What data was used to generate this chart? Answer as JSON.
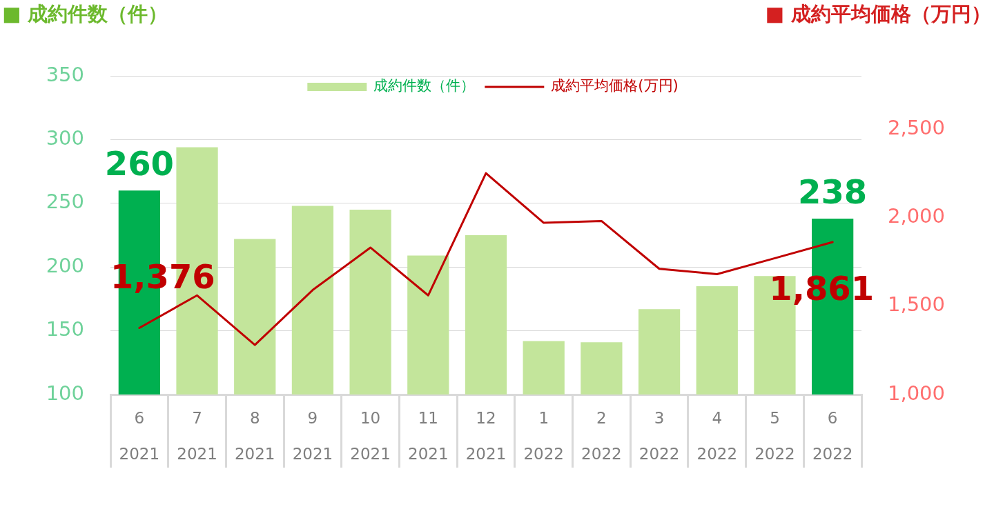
{
  "chart_data": {
    "type": "bar",
    "ylabel": "■ 成約件数（件）",
    "y2label": "■ 成約平均価格（万円）",
    "categories": [
      "6\n2021",
      "7\n2021",
      "8\n2021",
      "9\n2021",
      "10\n2021",
      "11\n2021",
      "12\n2021",
      "1\n2022",
      "2\n2022",
      "3\n2022",
      "4\n2022",
      "5\n2022",
      "6\n2022"
    ],
    "series": [
      {
        "name": "成約件数（件）",
        "color": "#c3e59b",
        "colors": [
          "#00b050",
          "#c3e59b",
          "#c3e59b",
          "#c3e59b",
          "#c3e59b",
          "#c3e59b",
          "#c3e59b",
          "#c3e59b",
          "#c3e59b",
          "#c3e59b",
          "#c3e59b",
          "#c3e59b",
          "#00b050"
        ],
        "values": [
          260,
          294,
          222,
          248,
          245,
          209,
          225,
          142,
          141,
          167,
          185,
          193,
          238
        ],
        "value_labels": [
          "260",
          null,
          null,
          null,
          null,
          null,
          null,
          null,
          null,
          null,
          null,
          null,
          "238"
        ]
      },
      {
        "name": "成約平均価格(万円)",
        "type": "line",
        "axis": "y2",
        "color": "#c00000",
        "values": [
          1376,
          1560,
          1280,
          1590,
          1830,
          1560,
          2250,
          1970,
          1980,
          1710,
          1680,
          1770,
          1861
        ],
        "value_labels": [
          "1,376",
          null,
          null,
          null,
          null,
          null,
          null,
          null,
          null,
          null,
          null,
          null,
          "1,861"
        ]
      }
    ],
    "ylim": [
      100,
      350
    ],
    "yticks": [
      100,
      150,
      200,
      250,
      300,
      350
    ],
    "y2lim": [
      1000,
      2800
    ],
    "y2ticks": [
      {
        "value": 1000,
        "label": "1,000"
      },
      {
        "value": 1500,
        "label": "1,500"
      },
      {
        "value": 2000,
        "label": "2,000"
      },
      {
        "value": 2500,
        "label": "2,500"
      }
    ],
    "grid": "y",
    "legend": "top"
  }
}
